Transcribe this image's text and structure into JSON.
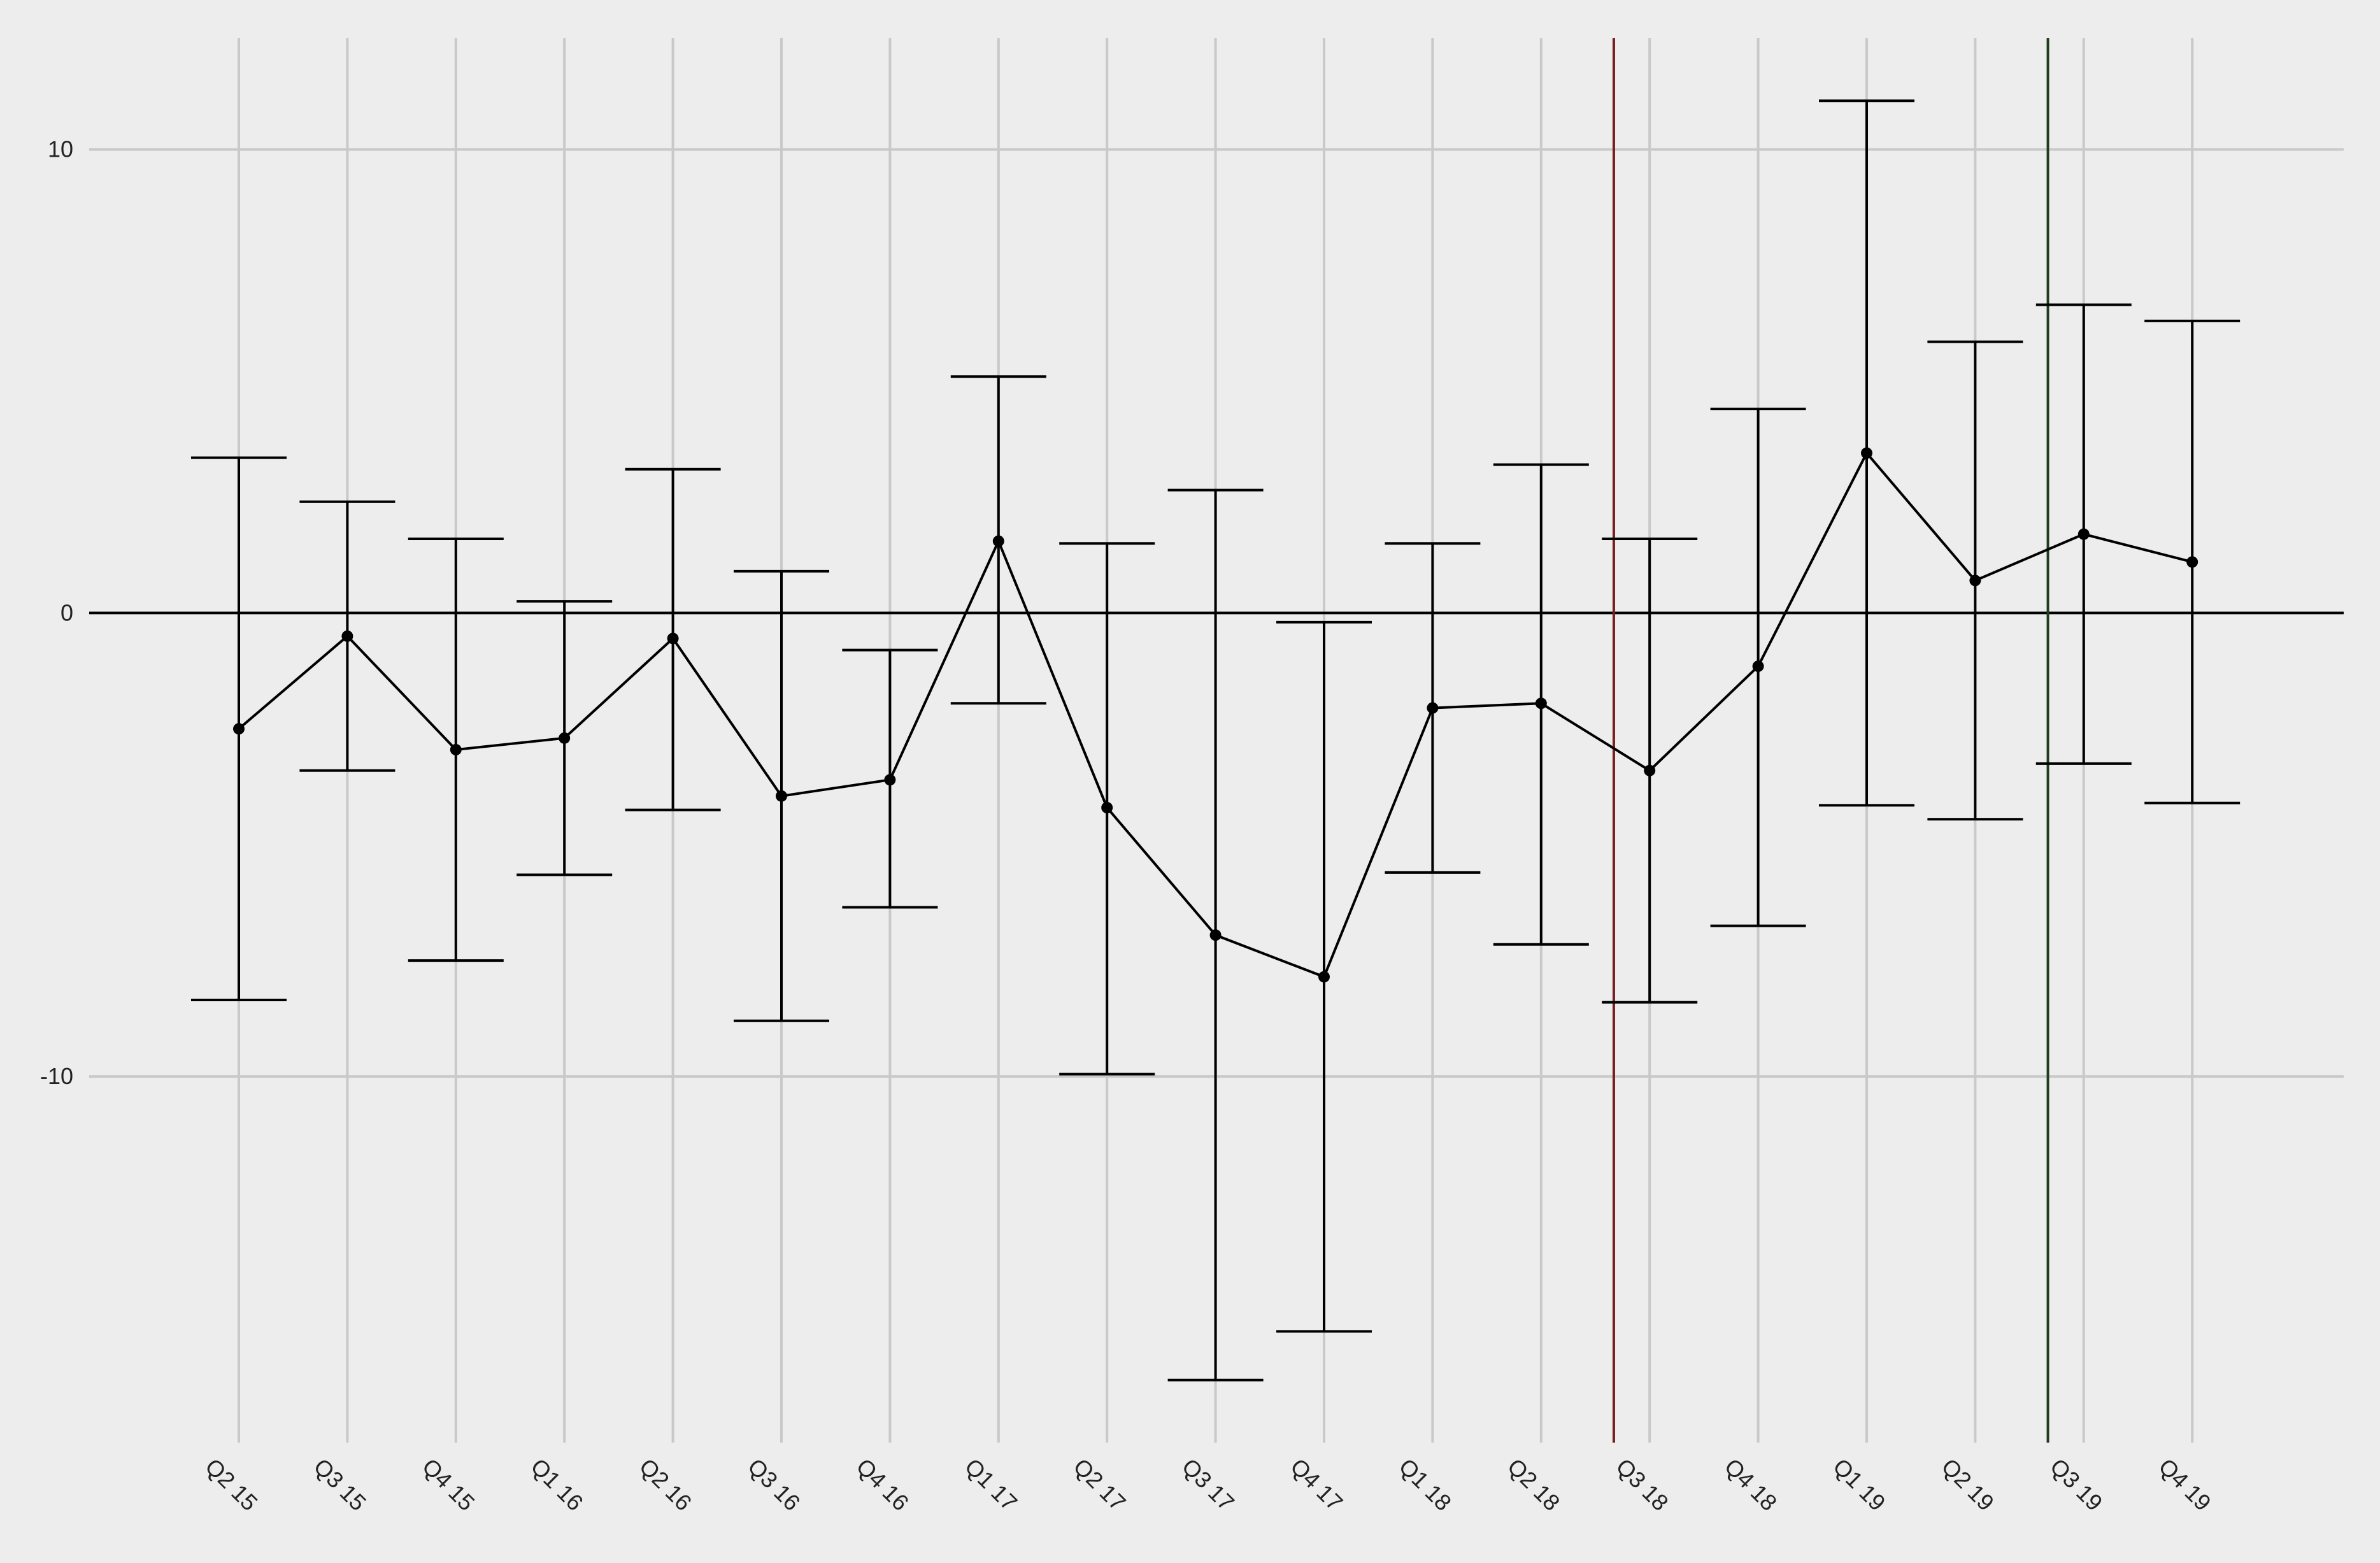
{
  "chart_data": {
    "type": "line",
    "title": "",
    "xlabel": "",
    "ylabel": "",
    "categories": [
      "Q2 15",
      "Q3 15",
      "Q4 15",
      "Q1 16",
      "Q2 16",
      "Q3 16",
      "Q4 16",
      "Q1 17",
      "Q2 17",
      "Q3 17",
      "Q4 17",
      "Q1 18",
      "Q2 18",
      "Q3 18",
      "Q4 18",
      "Q1 19",
      "Q2 19",
      "Q3 19",
      "Q4 19"
    ],
    "series": [
      {
        "values": [
          -2.5,
          -0.5,
          -2.95,
          -2.7,
          -0.55,
          -3.95,
          -3.6,
          1.55,
          -4.2,
          -6.95,
          -7.85,
          -2.05,
          -1.95,
          -3.4,
          -1.15,
          3.45,
          0.7,
          1.7,
          1.1
        ],
        "lower": [
          -8.35,
          -3.4,
          -7.5,
          -5.65,
          -4.25,
          -8.8,
          -6.35,
          -1.95,
          -9.95,
          -16.55,
          -15.5,
          -5.6,
          -7.15,
          -8.4,
          -6.75,
          -4.15,
          -4.45,
          -3.25,
          -4.1
        ],
        "upper": [
          3.35,
          2.4,
          1.6,
          0.25,
          3.1,
          0.9,
          -0.8,
          5.1,
          1.5,
          2.65,
          -0.2,
          1.5,
          3.2,
          1.6,
          4.4,
          11.05,
          5.85,
          6.65,
          6.3
        ],
        "color": "#000000"
      }
    ],
    "vlines": [
      {
        "x": "Q3 18",
        "color": "#7a1f1f"
      },
      {
        "x": "Q3 19",
        "color": "#1f3d1f"
      }
    ],
    "yticks": [
      10,
      0,
      -10
    ],
    "ylim": [
      -17.9,
      12.4
    ],
    "grid": true,
    "hline": 0
  }
}
